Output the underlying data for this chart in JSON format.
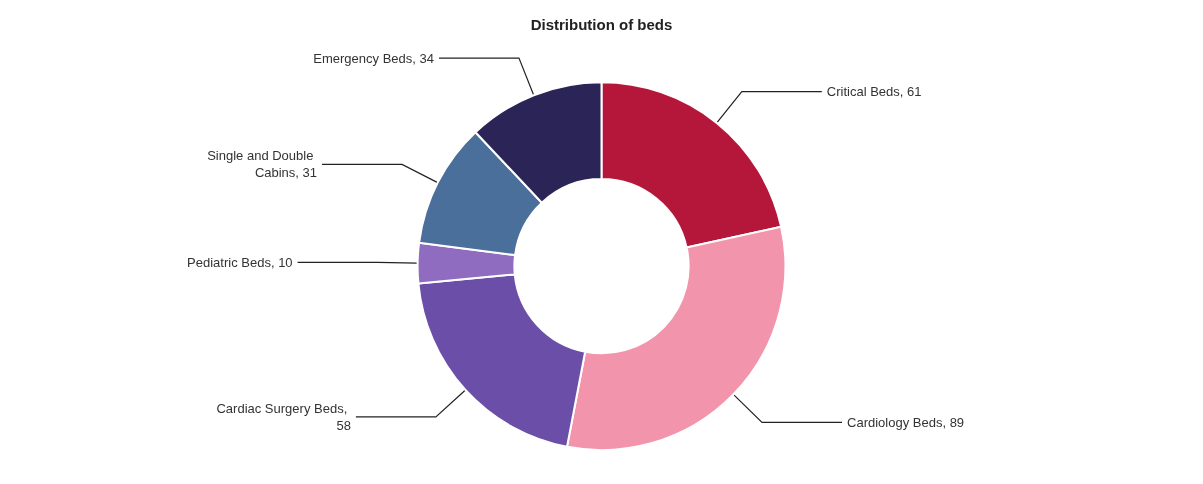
{
  "chart_data": {
    "type": "donut",
    "title": "Distribution of beds",
    "categories": [
      null,
      null,
      null,
      null,
      null,
      null
    ],
    "values": [
      61,
      89,
      58,
      10,
      31,
      34
    ],
    "colors": [
      "#b5173a",
      "#f295ac",
      "#6a4ea8",
      "#8f6cc0",
      "#4a6f9a",
      "#2b2456"
    ],
    "value_labels": [
      "Critical Beds, 61",
      "Cardiology Beds, 89",
      "Cardiac Surgery Beds, 58",
      "Pediatric Beds, 10",
      "Single and Double Cabins, 31",
      "Emergency Beds, 34"
    ]
  }
}
